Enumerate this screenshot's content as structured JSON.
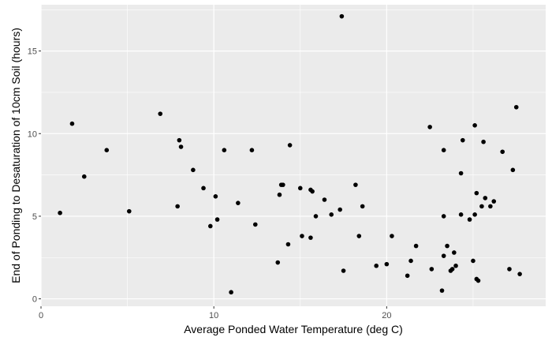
{
  "chart_data": {
    "type": "scatter",
    "xlabel": "Average Ponded Water Temperature (deg C)",
    "ylabel": "End of Ponding to Desaturation of 10cm Soil (hours)",
    "xlim": [
      0,
      29.2
    ],
    "ylim": [
      -0.45,
      17.8
    ],
    "x_ticks": [
      0,
      10,
      20
    ],
    "y_ticks": [
      0,
      5,
      10,
      15
    ],
    "grid": true,
    "background": "#EBEBEB",
    "point_color": "#000000",
    "points": [
      {
        "x": 1.1,
        "y": 5.2
      },
      {
        "x": 1.8,
        "y": 10.6
      },
      {
        "x": 2.5,
        "y": 7.4
      },
      {
        "x": 3.8,
        "y": 9.0
      },
      {
        "x": 5.1,
        "y": 5.3
      },
      {
        "x": 6.9,
        "y": 11.2
      },
      {
        "x": 7.9,
        "y": 5.6
      },
      {
        "x": 8.0,
        "y": 9.6
      },
      {
        "x": 8.1,
        "y": 9.2
      },
      {
        "x": 8.8,
        "y": 7.8
      },
      {
        "x": 9.4,
        "y": 6.7
      },
      {
        "x": 9.8,
        "y": 4.4
      },
      {
        "x": 10.1,
        "y": 6.2
      },
      {
        "x": 10.2,
        "y": 4.8
      },
      {
        "x": 10.6,
        "y": 9.0
      },
      {
        "x": 11.0,
        "y": 0.4
      },
      {
        "x": 11.4,
        "y": 5.8
      },
      {
        "x": 12.2,
        "y": 9.0
      },
      {
        "x": 12.4,
        "y": 4.5
      },
      {
        "x": 13.7,
        "y": 2.2
      },
      {
        "x": 13.8,
        "y": 6.3
      },
      {
        "x": 13.9,
        "y": 6.9
      },
      {
        "x": 14.0,
        "y": 6.9
      },
      {
        "x": 14.3,
        "y": 3.3
      },
      {
        "x": 14.4,
        "y": 9.3
      },
      {
        "x": 15.0,
        "y": 6.7
      },
      {
        "x": 15.1,
        "y": 3.8
      },
      {
        "x": 15.6,
        "y": 6.6
      },
      {
        "x": 15.6,
        "y": 3.7
      },
      {
        "x": 15.7,
        "y": 6.5
      },
      {
        "x": 15.9,
        "y": 5.0
      },
      {
        "x": 16.4,
        "y": 6.0
      },
      {
        "x": 16.8,
        "y": 5.1
      },
      {
        "x": 17.3,
        "y": 5.4
      },
      {
        "x": 17.4,
        "y": 17.1
      },
      {
        "x": 17.5,
        "y": 1.7
      },
      {
        "x": 18.2,
        "y": 6.9
      },
      {
        "x": 18.4,
        "y": 3.8
      },
      {
        "x": 18.6,
        "y": 5.6
      },
      {
        "x": 19.4,
        "y": 2.0
      },
      {
        "x": 20.0,
        "y": 2.1
      },
      {
        "x": 20.3,
        "y": 3.8
      },
      {
        "x": 21.2,
        "y": 1.4
      },
      {
        "x": 21.4,
        "y": 2.3
      },
      {
        "x": 21.7,
        "y": 3.2
      },
      {
        "x": 22.5,
        "y": 10.4
      },
      {
        "x": 22.6,
        "y": 1.8
      },
      {
        "x": 23.2,
        "y": 0.5
      },
      {
        "x": 23.3,
        "y": 5.0
      },
      {
        "x": 23.3,
        "y": 9.0
      },
      {
        "x": 23.3,
        "y": 2.6
      },
      {
        "x": 23.5,
        "y": 3.2
      },
      {
        "x": 23.7,
        "y": 1.7
      },
      {
        "x": 23.8,
        "y": 1.8
      },
      {
        "x": 23.9,
        "y": 2.8
      },
      {
        "x": 24.0,
        "y": 2.0
      },
      {
        "x": 24.3,
        "y": 5.1
      },
      {
        "x": 24.3,
        "y": 7.6
      },
      {
        "x": 24.4,
        "y": 9.6
      },
      {
        "x": 24.8,
        "y": 4.8
      },
      {
        "x": 25.0,
        "y": 2.3
      },
      {
        "x": 25.1,
        "y": 10.5
      },
      {
        "x": 25.1,
        "y": 5.1
      },
      {
        "x": 25.2,
        "y": 6.4
      },
      {
        "x": 25.2,
        "y": 1.2
      },
      {
        "x": 25.3,
        "y": 1.1
      },
      {
        "x": 25.5,
        "y": 5.6
      },
      {
        "x": 25.6,
        "y": 9.5
      },
      {
        "x": 25.7,
        "y": 6.1
      },
      {
        "x": 26.0,
        "y": 5.6
      },
      {
        "x": 26.2,
        "y": 5.9
      },
      {
        "x": 26.7,
        "y": 8.9
      },
      {
        "x": 27.1,
        "y": 1.8
      },
      {
        "x": 27.3,
        "y": 7.8
      },
      {
        "x": 27.5,
        "y": 11.6
      },
      {
        "x": 27.7,
        "y": 1.5
      }
    ]
  }
}
